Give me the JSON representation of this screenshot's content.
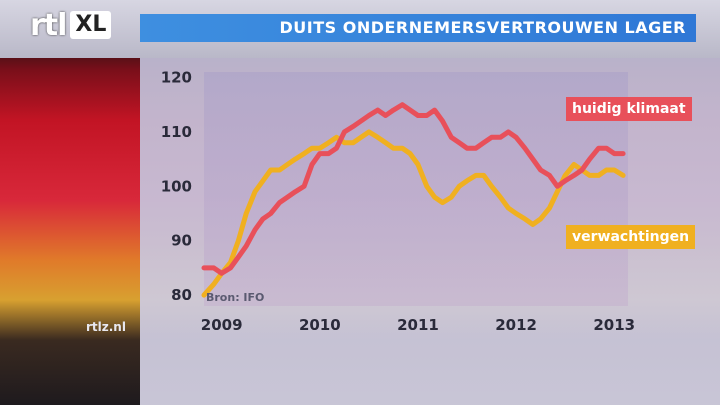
{
  "header": {
    "logo_text": "rtl",
    "logo_badge": "XL",
    "title": "DUITS ONDERNEMERSVERTROUWEN LAGER"
  },
  "watermark": "rtlz.nl",
  "colors": {
    "title_bar": "#3a87de",
    "series_1": "#e8505a",
    "series_2": "#f0b020"
  },
  "chart_data": {
    "type": "line",
    "title": "DUITS ONDERNEMERSVERTROUWEN LAGER",
    "source": "Bron: IFO",
    "xlabel": "",
    "ylabel": "",
    "xlim": [
      2008.9,
      2013.22
    ],
    "ylim": [
      78,
      121
    ],
    "x_ticks": [
      "2009",
      "2010",
      "2011",
      "2012",
      "2013"
    ],
    "y_ticks": [
      80,
      90,
      100,
      110,
      120
    ],
    "grid": false,
    "legend": "labels next to lines, right side",
    "series": [
      {
        "name": "huidig klimaat",
        "color": "#e8505a",
        "x": [
          2008.9,
          2009.0,
          2009.08,
          2009.17,
          2009.25,
          2009.33,
          2009.42,
          2009.5,
          2009.58,
          2009.67,
          2009.75,
          2009.83,
          2009.92,
          2010.0,
          2010.08,
          2010.17,
          2010.25,
          2010.33,
          2010.42,
          2010.5,
          2010.58,
          2010.67,
          2010.75,
          2010.83,
          2010.92,
          2011.0,
          2011.08,
          2011.17,
          2011.25,
          2011.33,
          2011.42,
          2011.5,
          2011.58,
          2011.67,
          2011.75,
          2011.83,
          2011.92,
          2012.0,
          2012.08,
          2012.17,
          2012.25,
          2012.33,
          2012.42,
          2012.5,
          2012.58,
          2012.67,
          2012.75,
          2012.83,
          2012.92,
          2013.0,
          2013.08,
          2013.17
        ],
        "values": [
          85,
          85,
          84,
          85,
          87,
          89,
          92,
          94,
          95,
          97,
          98,
          99,
          100,
          104,
          106,
          106,
          107,
          110,
          111,
          112,
          113,
          114,
          113,
          114,
          115,
          114,
          113,
          113,
          114,
          112,
          109,
          108,
          107,
          107,
          108,
          109,
          109,
          110,
          109,
          107,
          105,
          103,
          102,
          100,
          101,
          102,
          103,
          105,
          107,
          107,
          106,
          106
        ]
      },
      {
        "name": "verwachtingen",
        "color": "#f0b020",
        "x": [
          2008.9,
          2009.0,
          2009.08,
          2009.17,
          2009.25,
          2009.33,
          2009.42,
          2009.5,
          2009.58,
          2009.67,
          2009.75,
          2009.83,
          2009.92,
          2010.0,
          2010.08,
          2010.17,
          2010.25,
          2010.33,
          2010.42,
          2010.5,
          2010.58,
          2010.67,
          2010.75,
          2010.83,
          2010.92,
          2011.0,
          2011.08,
          2011.17,
          2011.25,
          2011.33,
          2011.42,
          2011.5,
          2011.58,
          2011.67,
          2011.75,
          2011.83,
          2011.92,
          2012.0,
          2012.08,
          2012.17,
          2012.25,
          2012.33,
          2012.42,
          2012.5,
          2012.58,
          2012.67,
          2012.75,
          2012.83,
          2012.92,
          2013.0,
          2013.08,
          2013.17
        ],
        "values": [
          80,
          82,
          84,
          86,
          90,
          95,
          99,
          101,
          103,
          103,
          104,
          105,
          106,
          107,
          107,
          108,
          109,
          108,
          108,
          109,
          110,
          109,
          108,
          107,
          107,
          106,
          104,
          100,
          98,
          97,
          98,
          100,
          101,
          102,
          102,
          100,
          98,
          96,
          95,
          94,
          93,
          94,
          96,
          99,
          102,
          104,
          103,
          102,
          102,
          103,
          103,
          102
        ]
      }
    ]
  }
}
